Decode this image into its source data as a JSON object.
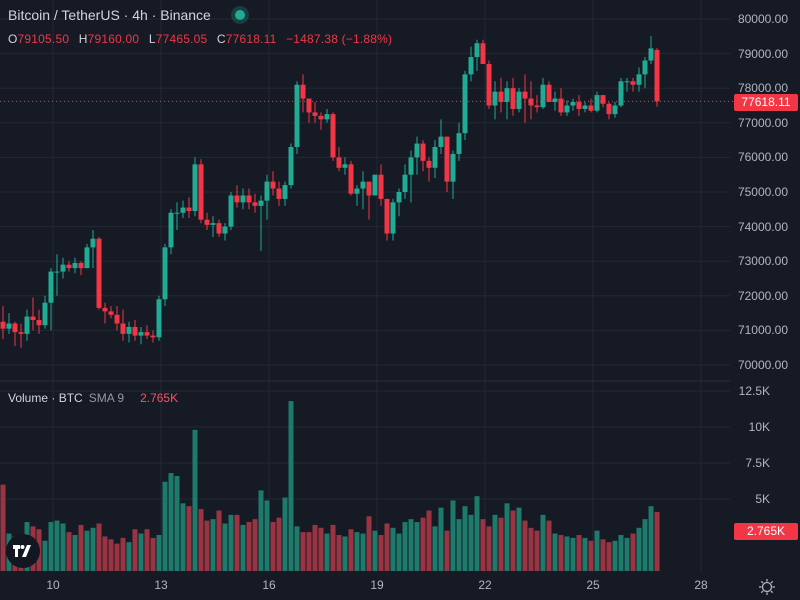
{
  "header": {
    "symbol_title": "Bitcoin / TetherUS · 4h · Binance",
    "status": "market-open",
    "ohlc": {
      "open_label": "O",
      "open": "79105.50",
      "high_label": "H",
      "high": "79160.00",
      "low_label": "L",
      "low": "77465.05",
      "close_label": "C",
      "close": "77618.11",
      "change": "−1487.38 (−1.88%)"
    }
  },
  "volume_legend": {
    "title": "Volume · BTC",
    "indicator": "SMA 9",
    "value": "2.765K"
  },
  "price_axis": {
    "labels": [
      "80000.00",
      "79000.00",
      "78000.00",
      "77000.00",
      "76000.00",
      "75000.00",
      "74000.00",
      "73000.00",
      "72000.00",
      "71000.00",
      "70000.00"
    ],
    "current_price": "77618.11"
  },
  "volume_axis": {
    "labels": [
      "12.5K",
      "10K",
      "7.5K",
      "5K"
    ],
    "current_value": "2.765K"
  },
  "time_axis": {
    "labels": [
      "10",
      "13",
      "16",
      "19",
      "22",
      "25",
      "28"
    ]
  },
  "colors": {
    "background": "#161a25",
    "up": "#22ab94",
    "down": "#f23645",
    "vol_up": "#1e7a6b",
    "vol_down": "#9b3442",
    "grid": "#242833",
    "text": "#b2b5be"
  },
  "chart_data": {
    "type": "candlestick",
    "title": "Bitcoin / TetherUS · 4h · Binance",
    "x_tick_labels": [
      "10",
      "13",
      "16",
      "19",
      "22",
      "25",
      "28"
    ],
    "price_range": [
      69500,
      80500
    ],
    "volume_range_k": [
      0,
      12.5
    ],
    "volume_sma_9_k": 2.765,
    "last": {
      "open": 79105.5,
      "high": 79160.0,
      "low": 77465.05,
      "close": 77618.11,
      "change": -1487.38,
      "change_pct": -1.88
    },
    "candles": [
      [
        71250,
        71700,
        70750,
        71050,
        6.0
      ],
      [
        71050,
        71500,
        70900,
        71200,
        2.6
      ],
      [
        71200,
        71250,
        70550,
        70950,
        2.4
      ],
      [
        70950,
        71200,
        70500,
        70900,
        2.2
      ],
      [
        70900,
        71600,
        70700,
        71400,
        3.4
      ],
      [
        71400,
        71950,
        71000,
        71300,
        3.1
      ],
      [
        71300,
        71600,
        70900,
        71150,
        2.9
      ],
      [
        71150,
        72000,
        71050,
        71800,
        2.1
      ],
      [
        71800,
        72800,
        71000,
        72700,
        3.4
      ],
      [
        72700,
        73200,
        72000,
        72700,
        3.5
      ],
      [
        72700,
        73100,
        72500,
        72900,
        3.3
      ],
      [
        72900,
        73000,
        72700,
        72800,
        2.7
      ],
      [
        72800,
        73100,
        72650,
        72950,
        2.5
      ],
      [
        72950,
        73000,
        72600,
        72800,
        3.2
      ],
      [
        72800,
        73500,
        72800,
        73400,
        2.8
      ],
      [
        73400,
        73900,
        72800,
        73650,
        3.0
      ],
      [
        73650,
        73700,
        71600,
        71650,
        3.3
      ],
      [
        71650,
        71800,
        71200,
        71550,
        2.4
      ],
      [
        71550,
        71700,
        71350,
        71450,
        2.2
      ],
      [
        71450,
        71700,
        71000,
        71200,
        1.9
      ],
      [
        71200,
        71600,
        70700,
        70900,
        2.3
      ],
      [
        70900,
        71250,
        70650,
        71100,
        2.0
      ],
      [
        71100,
        71300,
        70700,
        70850,
        2.9
      ],
      [
        70850,
        71100,
        70600,
        70950,
        2.6
      ],
      [
        70950,
        71150,
        70750,
        70850,
        2.9
      ],
      [
        70850,
        71000,
        70650,
        70800,
        2.3
      ],
      [
        70800,
        72000,
        70700,
        71900,
        2.5
      ],
      [
        71900,
        73500,
        71700,
        73400,
        6.2
      ],
      [
        73400,
        74500,
        73200,
        74400,
        6.8
      ],
      [
        74400,
        74700,
        73900,
        74400,
        6.6
      ],
      [
        74400,
        74750,
        74250,
        74550,
        4.7
      ],
      [
        74550,
        74850,
        74250,
        74450,
        4.5
      ],
      [
        74450,
        76000,
        74300,
        75800,
        9.8
      ],
      [
        75800,
        75950,
        74100,
        74200,
        4.3
      ],
      [
        74200,
        74400,
        73900,
        74050,
        3.5
      ],
      [
        74050,
        74300,
        73700,
        74100,
        3.6
      ],
      [
        74100,
        74200,
        73700,
        73800,
        4.2
      ],
      [
        73800,
        74100,
        73600,
        74000,
        3.3
      ],
      [
        74000,
        75000,
        73900,
        74900,
        3.9
      ],
      [
        74900,
        75200,
        74550,
        74700,
        3.9
      ],
      [
        74700,
        75100,
        74500,
        74900,
        3.2
      ],
      [
        74900,
        75100,
        74500,
        74700,
        3.4
      ],
      [
        74700,
        74950,
        74400,
        74600,
        3.6
      ],
      [
        74600,
        74900,
        73300,
        74750,
        5.6
      ],
      [
        74750,
        75500,
        74200,
        75300,
        4.9
      ],
      [
        75300,
        75600,
        74900,
        75100,
        3.4
      ],
      [
        75100,
        75300,
        74600,
        74800,
        3.7
      ],
      [
        74800,
        75300,
        74600,
        75200,
        5.1
      ],
      [
        75200,
        76400,
        75100,
        76300,
        11.8
      ],
      [
        76300,
        78200,
        76100,
        78100,
        3.1
      ],
      [
        78100,
        78400,
        77300,
        77700,
        2.7
      ],
      [
        77700,
        77700,
        77000,
        77300,
        2.7
      ],
      [
        77300,
        77600,
        77000,
        77200,
        3.2
      ],
      [
        77200,
        77300,
        76800,
        77100,
        3.0
      ],
      [
        77100,
        77400,
        77000,
        77250,
        2.6
      ],
      [
        77250,
        77300,
        75900,
        76000,
        3.2
      ],
      [
        76000,
        76300,
        75600,
        75700,
        2.5
      ],
      [
        75700,
        76000,
        75500,
        75800,
        2.4
      ],
      [
        75800,
        75900,
        74900,
        74950,
        2.9
      ],
      [
        74950,
        75200,
        74600,
        75100,
        2.7
      ],
      [
        75100,
        75600,
        74500,
        75300,
        2.6
      ],
      [
        75300,
        75300,
        74200,
        74900,
        3.8
      ],
      [
        74900,
        75400,
        74900,
        75500,
        2.8
      ],
      [
        75500,
        75800,
        74600,
        74800,
        2.5
      ],
      [
        74800,
        74800,
        73600,
        73800,
        3.3
      ],
      [
        73800,
        74800,
        73600,
        74700,
        3.0
      ],
      [
        74700,
        75100,
        74300,
        75000,
        2.6
      ],
      [
        75000,
        75800,
        74800,
        75500,
        3.4
      ],
      [
        75500,
        76200,
        74700,
        76000,
        3.6
      ],
      [
        76000,
        76600,
        75500,
        76400,
        3.4
      ],
      [
        76400,
        76500,
        75600,
        75900,
        3.7
      ],
      [
        75900,
        76000,
        75300,
        75700,
        4.2
      ],
      [
        75700,
        76500,
        75400,
        76300,
        3.1
      ],
      [
        76300,
        77100,
        76100,
        76600,
        4.4
      ],
      [
        76600,
        76600,
        75000,
        75300,
        2.8
      ],
      [
        75300,
        76200,
        74800,
        76100,
        4.9
      ],
      [
        76100,
        77000,
        75900,
        76700,
        3.6
      ],
      [
        76700,
        78500,
        76500,
        78400,
        4.5
      ],
      [
        78400,
        79200,
        78200,
        78900,
        3.9
      ],
      [
        78900,
        79400,
        78500,
        79300,
        5.2
      ],
      [
        79300,
        79400,
        78700,
        78700,
        3.6
      ],
      [
        78700,
        78800,
        77400,
        77500,
        3.1
      ],
      [
        77500,
        78200,
        77100,
        77900,
        3.9
      ],
      [
        77900,
        78300,
        77300,
        77600,
        3.7
      ],
      [
        77600,
        78200,
        77100,
        78000,
        4.7
      ],
      [
        78000,
        78300,
        77200,
        77400,
        4.2
      ],
      [
        77400,
        78000,
        77300,
        77900,
        4.4
      ],
      [
        77900,
        78400,
        77000,
        77700,
        3.5
      ],
      [
        77700,
        78200,
        77100,
        77500,
        3.0
      ],
      [
        77500,
        77800,
        77300,
        77450,
        2.8
      ],
      [
        77450,
        78300,
        77400,
        78100,
        3.9
      ],
      [
        78100,
        78200,
        77600,
        77600,
        3.5
      ],
      [
        77600,
        77900,
        77350,
        77700,
        2.6
      ],
      [
        77700,
        78000,
        77200,
        77300,
        2.5
      ],
      [
        77300,
        77650,
        77200,
        77500,
        2.4
      ],
      [
        77500,
        77700,
        77350,
        77600,
        2.3
      ],
      [
        77600,
        77800,
        77200,
        77400,
        2.5
      ],
      [
        77400,
        77600,
        77300,
        77500,
        2.3
      ],
      [
        77500,
        77700,
        77300,
        77350,
        2.1
      ],
      [
        77350,
        77900,
        77300,
        77800,
        2.8
      ],
      [
        77800,
        77800,
        77450,
        77550,
        2.2
      ],
      [
        77550,
        77600,
        77100,
        77250,
        2.0
      ],
      [
        77250,
        77600,
        77150,
        77500,
        2.1
      ],
      [
        77500,
        78300,
        77450,
        78200,
        2.5
      ],
      [
        78200,
        78300,
        77900,
        78200,
        2.3
      ],
      [
        78200,
        78300,
        77900,
        78100,
        2.6
      ],
      [
        78100,
        78600,
        77900,
        78400,
        3.0
      ],
      [
        78400,
        78900,
        78000,
        78800,
        3.6
      ],
      [
        78800,
        79500,
        78700,
        79150,
        4.5
      ],
      [
        79105.5,
        79160,
        77465.05,
        77618.11,
        4.1
      ]
    ]
  }
}
